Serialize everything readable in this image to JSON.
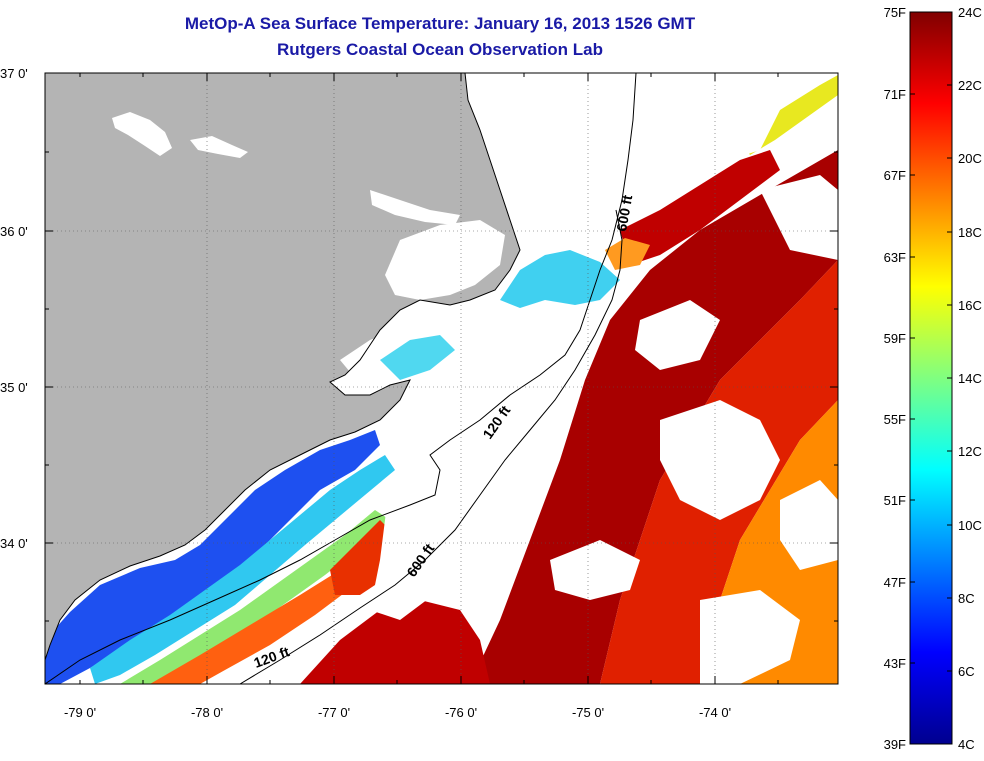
{
  "header": {
    "title": "MetOp-A Sea Surface Temperature:  January 16, 2013 1526 GMT",
    "subtitle": "Rutgers Coastal Ocean Observation Lab"
  },
  "map": {
    "lat_labels": [
      "37 0'",
      "36 0'",
      "35 0'",
      "34 0'"
    ],
    "lon_labels": [
      "-79 0'",
      "-78 0'",
      "-77 0'",
      "-76 0'",
      "-75 0'",
      "-74 0'"
    ],
    "contour_labels": [
      "600 ft",
      "120 ft",
      "600 ft",
      "120 ft"
    ],
    "colors": {
      "land": "#b4b4b4",
      "cloud": "#ffffff"
    }
  },
  "colorbar": {
    "fahrenheit_labels": [
      "75F",
      "71F",
      "67F",
      "63F",
      "59F",
      "55F",
      "51F",
      "47F",
      "43F",
      "39F"
    ],
    "celsius_labels": [
      "24C",
      "22C",
      "20C",
      "18C",
      "16C",
      "14C",
      "12C",
      "10C",
      "8C",
      "6C",
      "4C"
    ],
    "range_celsius": [
      4,
      24
    ],
    "range_fahrenheit": [
      39,
      75
    ],
    "colormap": "jet"
  }
}
